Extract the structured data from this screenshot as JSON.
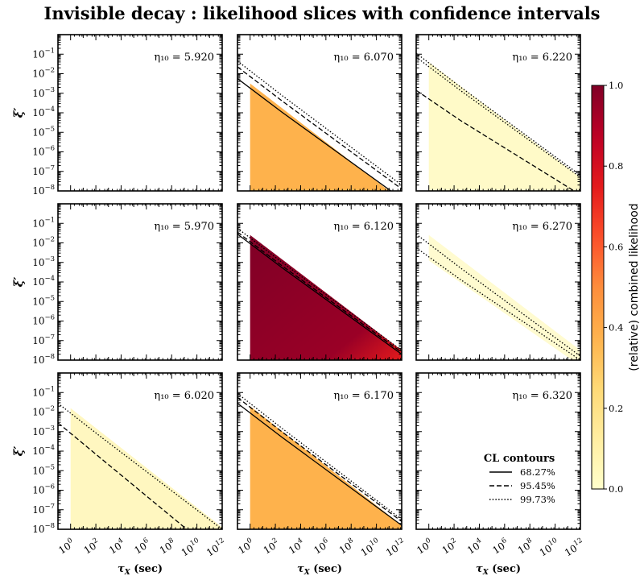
{
  "chart_data": {
    "type": "heatmap",
    "title": "Invisible decay :  likelihood slices with confidence intervals",
    "xlabel": "τ_X (sec)",
    "ylabel": "ξ′",
    "x_scale": "log",
    "y_scale": "log",
    "xlim": [
      0.1,
      1000000000000.0
    ],
    "ylim": [
      1e-08,
      1
    ],
    "x_ticks": [
      "10^0",
      "10^2",
      "10^4",
      "10^6",
      "10^8",
      "10^10",
      "10^12"
    ],
    "y_ticks": [
      "10^-8",
      "10^-7",
      "10^-6",
      "10^-5",
      "10^-4",
      "10^-3",
      "10^-2",
      "10^-1"
    ],
    "colorbar": {
      "label": "(relative) combined likelihood",
      "range": [
        0.0,
        1.0
      ],
      "ticks": [
        "0.0",
        "0.2",
        "0.4",
        "0.6",
        "0.8",
        "1.0"
      ],
      "colormap": "YlOrRd",
      "colors": [
        "#ffffcc",
        "#ffeda0",
        "#fed976",
        "#feb24c",
        "#fd8d3c",
        "#fc4e2a",
        "#e31a1c",
        "#bd0026",
        "#800026"
      ]
    },
    "legend": {
      "title": "CL contours",
      "placement": "lower-right",
      "entries": [
        {
          "label": "68.27%",
          "style": "solid"
        },
        {
          "label": "95.45%",
          "style": "dashed"
        },
        {
          "label": "99.73%",
          "style": "dotted"
        }
      ]
    },
    "panels": [
      {
        "eta_label": "η₁₀ = 5.920",
        "eta": 5.92,
        "fill": null,
        "contours": []
      },
      {
        "eta_label": "η₁₀ = 6.070",
        "eta": 6.07,
        "fill": {
          "level": 0.42,
          "edge_log_xi_at_tau1": -2.5
        },
        "contours": [
          {
            "cl": "68.27%",
            "style": "solid",
            "log_xi_at_tau1": -2.6,
            "log_xi_at_tau12": -8.4
          },
          {
            "cl": "95.45%",
            "style": "dashed",
            "log_xi_at_tau1": -2.0,
            "log_xi_at_tau12": -7.9
          },
          {
            "cl": "99.73%",
            "style": "dotted",
            "log_xi_at_tau1": -1.7,
            "log_xi_at_tau12": -7.7
          }
        ]
      },
      {
        "eta_label": "η₁₀ = 6.220",
        "eta": 6.22,
        "fill": {
          "level": 0.08,
          "edge_log_xi_at_tau1": -1.4
        },
        "contours": [
          {
            "cl": "95.45%",
            "style": "dashed",
            "log_xi_at_tau1": -3.2,
            "log_xi_at_tau12": -8.2
          },
          {
            "cl": "99.73% (upper)",
            "style": "dotted",
            "log_xi_at_tau1": -1.5,
            "log_xi_at_tau12": -7.3
          },
          {
            "cl": "99.73% (outer)",
            "style": "dotted",
            "log_xi_at_tau1": -1.3,
            "log_xi_at_tau12": -7.2
          }
        ]
      },
      {
        "eta_label": "η₁₀ = 5.970",
        "eta": 5.97,
        "fill": null,
        "contours": []
      },
      {
        "eta_label": "η₁₀ = 6.120",
        "eta": 6.12,
        "fill": {
          "level": 1.0,
          "edge_log_xi_at_tau1": -1.6
        },
        "contours": [
          {
            "cl": "68.27%",
            "style": "solid",
            "log_xi_at_tau1": -1.9,
            "log_xi_at_tau12": -7.7
          },
          {
            "cl": "95.45%",
            "style": "dashed",
            "log_xi_at_tau1": -1.8,
            "log_xi_at_tau12": -7.6
          },
          {
            "cl": "99.73%",
            "style": "dotted",
            "log_xi_at_tau1": -1.6,
            "log_xi_at_tau12": -7.5
          }
        ]
      },
      {
        "eta_label": "η₁₀ = 6.270",
        "eta": 6.27,
        "fill": {
          "level": 0.06,
          "band": true
        },
        "contours": [
          {
            "cl": "99.73% (upper)",
            "style": "dotted",
            "log_xi_at_tau1": -1.9,
            "log_xi_at_tau12": -7.8
          },
          {
            "cl": "99.73% (lower)",
            "style": "dotted",
            "log_xi_at_tau1": -2.6,
            "log_xi_at_tau12": -8.0
          }
        ]
      },
      {
        "eta_label": "η₁₀ = 6.020",
        "eta": 6.02,
        "fill": {
          "level": 0.1,
          "edge_log_xi_at_tau1": -1.8
        },
        "contours": [
          {
            "cl": "95.45%",
            "style": "dashed",
            "log_xi_at_tau1": -2.9,
            "log_xi_at_tau12": -9.5
          },
          {
            "cl": "99.73%",
            "style": "dotted",
            "log_xi_at_tau1": -1.9,
            "log_xi_at_tau12": -8.0
          }
        ]
      },
      {
        "eta_label": "η₁₀ = 6.170",
        "eta": 6.17,
        "fill": {
          "level": 0.42,
          "edge_log_xi_at_tau1": -1.7
        },
        "contours": [
          {
            "cl": "68.27%",
            "style": "solid",
            "log_xi_at_tau1": -1.9,
            "log_xi_at_tau12": -7.8
          },
          {
            "cl": "95.45%",
            "style": "dashed",
            "log_xi_at_tau1": -1.6,
            "log_xi_at_tau12": -7.6
          },
          {
            "cl": "99.73%",
            "style": "dotted",
            "log_xi_at_tau1": -1.4,
            "log_xi_at_tau12": -7.5
          }
        ]
      },
      {
        "eta_label": "η₁₀ = 6.320",
        "eta": 6.32,
        "fill": null,
        "contours": []
      }
    ]
  }
}
